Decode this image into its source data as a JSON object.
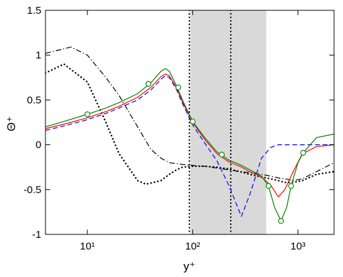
{
  "chart_data": {
    "type": "line",
    "x_label": "y⁺",
    "y_label": "Θ⁺",
    "x_scale": "log",
    "xlim": [
      4,
      2200
    ],
    "ylim": [
      -1,
      1.5
    ],
    "xticks": [
      {
        "value": 10,
        "label": "10¹"
      },
      {
        "value": 100,
        "label": "10²"
      },
      {
        "value": 1000,
        "label": "10³"
      }
    ],
    "yticks": [
      -1,
      -0.5,
      0,
      0.5,
      1,
      1.5
    ],
    "shaded_span": [
      95,
      500
    ],
    "shade_color": "#d9d9d9",
    "vlines": [
      93,
      230
    ],
    "series": [
      {
        "color": "#000000",
        "dash": "dotted",
        "x": [
          4,
          6,
          10,
          15,
          20,
          30,
          36,
          50,
          60,
          70,
          80,
          100,
          130,
          170,
          220,
          280,
          350,
          450,
          550,
          650,
          750,
          900,
          1100,
          1500,
          2200
        ],
        "values": [
          0.8,
          0.9,
          0.7,
          0.25,
          -0.1,
          -0.4,
          -0.44,
          -0.4,
          -0.33,
          -0.28,
          -0.25,
          -0.24,
          -0.24,
          -0.25,
          -0.27,
          -0.3,
          -0.33,
          -0.36,
          -0.38,
          -0.4,
          -0.42,
          -0.42,
          -0.4,
          -0.33,
          -0.3
        ]
      },
      {
        "color": "#000000",
        "dash": "dashdot",
        "x": [
          4,
          7,
          10,
          15,
          20,
          30,
          40,
          50,
          60,
          70,
          80,
          100,
          130,
          170,
          220,
          280,
          350,
          450,
          550,
          650,
          750,
          900,
          1100,
          1500,
          2200
        ],
        "values": [
          1.02,
          1.09,
          1.0,
          0.75,
          0.55,
          0.2,
          -0.05,
          -0.15,
          -0.2,
          -0.21,
          -0.22,
          -0.23,
          -0.24,
          -0.26,
          -0.28,
          -0.3,
          -0.31,
          -0.33,
          -0.35,
          -0.37,
          -0.38,
          -0.4,
          -0.38,
          -0.3,
          -0.2
        ]
      },
      {
        "color": "#0000ff",
        "dash": "dashed",
        "x": [
          4,
          6,
          10,
          15,
          20,
          30,
          40,
          50,
          55,
          60,
          70,
          80,
          100,
          130,
          170,
          220,
          290,
          350,
          450,
          550,
          650,
          900,
          1500,
          2200
        ],
        "values": [
          0.16,
          0.21,
          0.28,
          0.35,
          0.41,
          0.5,
          0.61,
          0.73,
          0.77,
          0.75,
          0.62,
          0.46,
          0.22,
          0.02,
          -0.18,
          -0.45,
          -0.8,
          -0.55,
          -0.15,
          -0.03,
          0.0,
          0.0,
          0.0,
          0.0
        ]
      },
      {
        "color": "#ff0000",
        "dash": "solid",
        "x": [
          4,
          6,
          10,
          15,
          20,
          30,
          40,
          50,
          55,
          60,
          70,
          80,
          100,
          130,
          170,
          220,
          280,
          350,
          450,
          550,
          650,
          750,
          900,
          1100,
          1500,
          2200
        ],
        "values": [
          0.18,
          0.23,
          0.3,
          0.37,
          0.43,
          0.53,
          0.64,
          0.76,
          0.79,
          0.77,
          0.64,
          0.48,
          0.25,
          0.06,
          -0.1,
          -0.19,
          -0.24,
          -0.3,
          -0.36,
          -0.45,
          -0.58,
          -0.5,
          -0.3,
          -0.1,
          -0.02,
          0.0
        ]
      },
      {
        "color": "#008000",
        "dash": "solid",
        "x": [
          4,
          6,
          10,
          15,
          20,
          30,
          40,
          50,
          55,
          60,
          70,
          80,
          100,
          130,
          170,
          220,
          280,
          350,
          450,
          525,
          600,
          690,
          780,
          860,
          1000,
          1120,
          1500,
          2200
        ],
        "values": [
          0.2,
          0.26,
          0.34,
          0.41,
          0.47,
          0.57,
          0.69,
          0.82,
          0.85,
          0.82,
          0.66,
          0.5,
          0.26,
          0.08,
          -0.08,
          -0.17,
          -0.22,
          -0.28,
          -0.35,
          -0.46,
          -0.7,
          -0.85,
          -0.7,
          -0.46,
          -0.2,
          -0.09,
          0.08,
          0.12
        ]
      },
      {
        "color": "#008000",
        "dash": "none",
        "marker": "circle",
        "x": [
          10,
          38,
          73,
          100,
          189,
          525,
          690,
          860,
          1120
        ],
        "values": [
          0.34,
          0.68,
          0.64,
          0.26,
          -0.11,
          -0.46,
          -0.85,
          -0.46,
          -0.09
        ]
      }
    ]
  }
}
